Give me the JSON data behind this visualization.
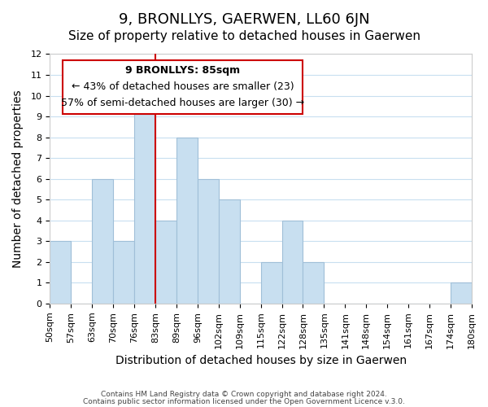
{
  "title": "9, BRONLLYS, GAERWEN, LL60 6JN",
  "subtitle": "Size of property relative to detached houses in Gaerwen",
  "xlabel": "Distribution of detached houses by size in Gaerwen",
  "ylabel": "Number of detached properties",
  "footer_line1": "Contains HM Land Registry data © Crown copyright and database right 2024.",
  "footer_line2": "Contains public sector information licensed under the Open Government Licence v.3.0.",
  "tick_labels": [
    "50sqm",
    "57sqm",
    "63sqm",
    "70sqm",
    "76sqm",
    "83sqm",
    "89sqm",
    "96sqm",
    "102sqm",
    "109sqm",
    "115sqm",
    "122sqm",
    "128sqm",
    "135sqm",
    "141sqm",
    "148sqm",
    "154sqm",
    "161sqm",
    "167sqm",
    "174sqm",
    "180sqm"
  ],
  "counts": [
    3,
    0,
    6,
    3,
    10,
    4,
    8,
    6,
    5,
    0,
    2,
    4,
    2,
    0,
    0,
    0,
    0,
    0,
    0,
    1
  ],
  "bar_color": "#c8dff0",
  "bar_edge_color": "#a0bfd8",
  "vline_x": 5.0,
  "vline_color": "#cc0000",
  "annotation_title": "9 BRONLLYS: 85sqm",
  "annotation_line1": "← 43% of detached houses are smaller (23)",
  "annotation_line2": "57% of semi-detached houses are larger (30) →",
  "ylim": [
    0,
    12
  ],
  "yticks": [
    0,
    1,
    2,
    3,
    4,
    5,
    6,
    7,
    8,
    9,
    10,
    11,
    12
  ],
  "background_color": "#ffffff",
  "grid_color": "#c8dff0",
  "title_fontsize": 13,
  "subtitle_fontsize": 11,
  "axis_label_fontsize": 10,
  "tick_fontsize": 8,
  "annotation_fontsize": 9
}
